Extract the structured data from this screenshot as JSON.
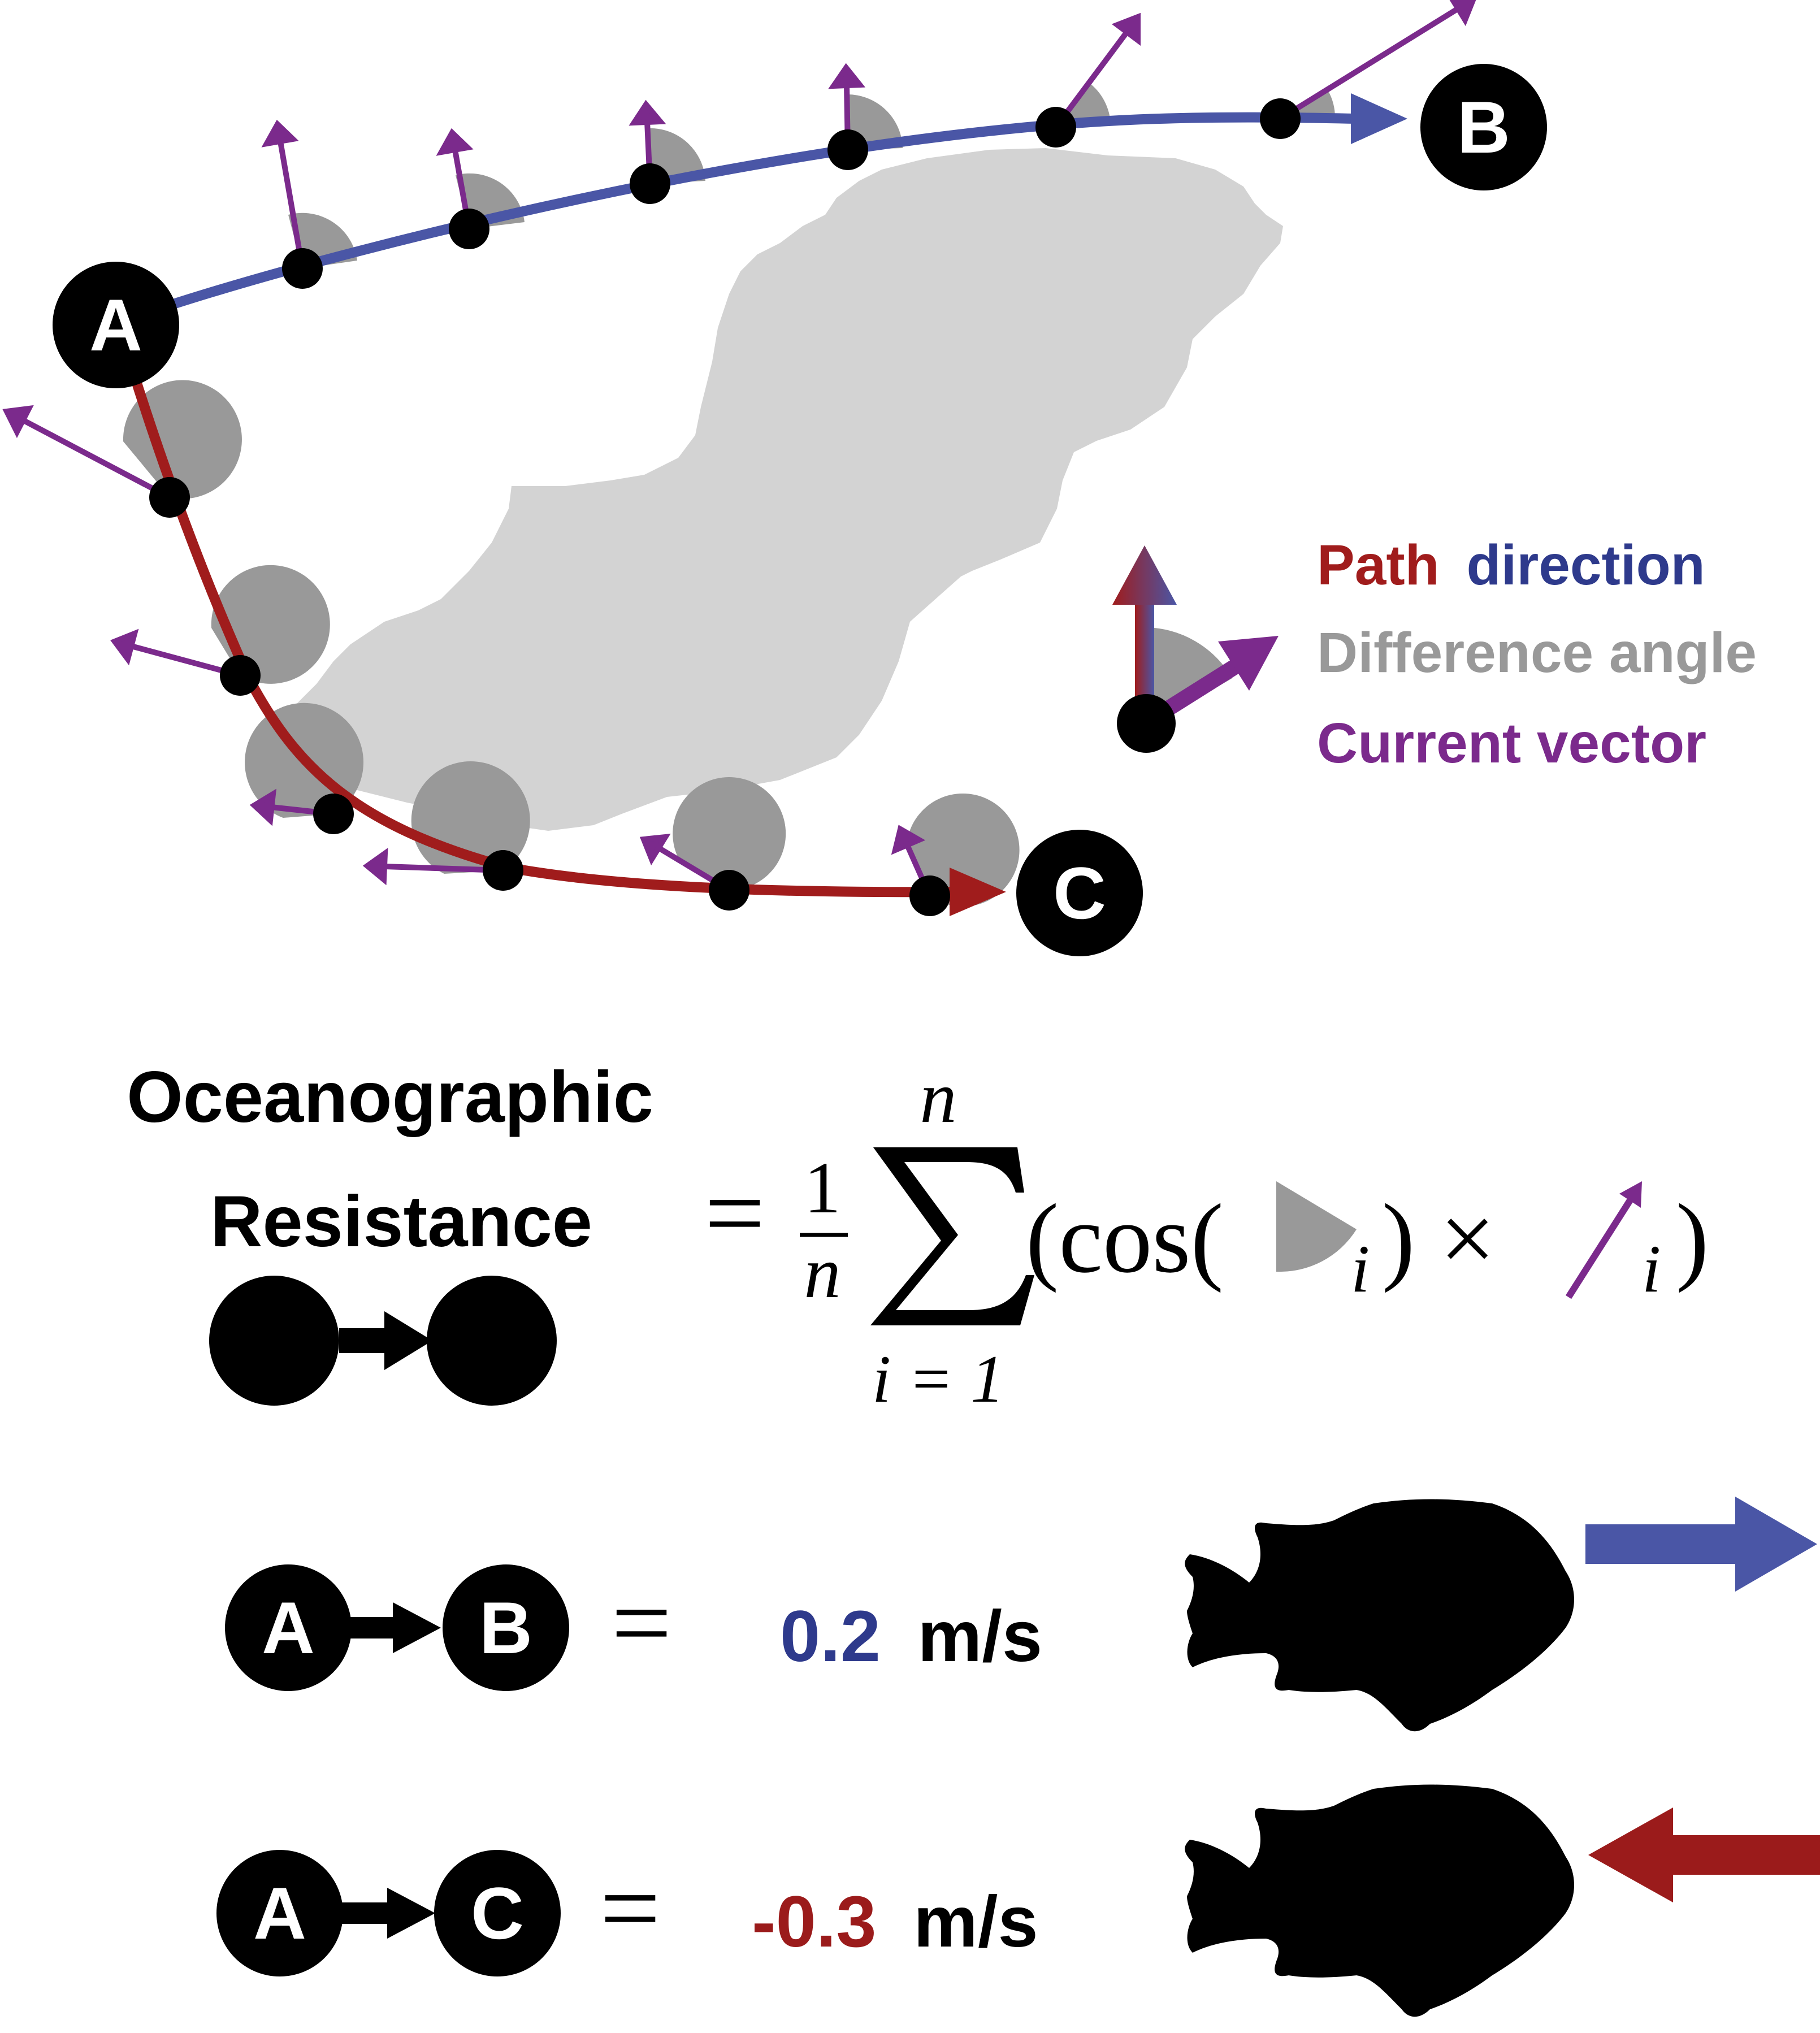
{
  "nodes": {
    "a": "A",
    "b": "B",
    "c": "C"
  },
  "legend": {
    "path": "Path",
    "direction": "direction",
    "difference_angle": "Difference angle",
    "current_vector": "Current vector"
  },
  "formula": {
    "title_line1": "Oceanographic",
    "title_line2": "Resistance",
    "equals": "=",
    "one": "1",
    "n_denominator": "n",
    "sum_upper": "n",
    "sum_lower": "i = 1",
    "cos_open": "(cos(",
    "sub_i1": "i",
    "close_times": ") ×",
    "sub_i2": "i",
    "close_paren": ")"
  },
  "results": [
    {
      "from": "A",
      "to": "B",
      "value": "0.2",
      "unit": "m/s",
      "color": "#2e3a8c"
    },
    {
      "from": "A",
      "to": "C",
      "value": "-0.3",
      "unit": "m/s",
      "color": "#9b1b1b"
    }
  ],
  "colors": {
    "blue_path": "#4a56a6",
    "red_path": "#a01c1c",
    "purple_vector": "#7b2a8c",
    "gray_angle": "#999999",
    "land": "#d3d3d3"
  }
}
